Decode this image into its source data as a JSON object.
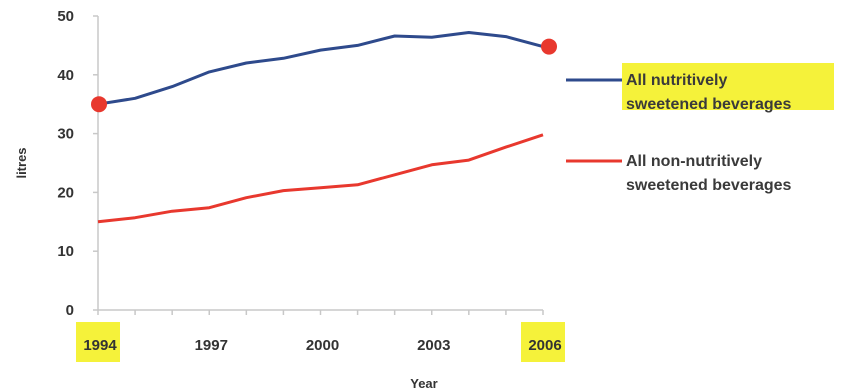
{
  "chart_data": {
    "type": "line",
    "title": "",
    "xlabel": "Year",
    "ylabel": "litres",
    "xlim": [
      1994,
      2006
    ],
    "ylim": [
      0,
      50
    ],
    "xticks": [
      "1994",
      "1997",
      "2000",
      "2003",
      "2006"
    ],
    "yticks": [
      "0",
      "10",
      "20",
      "30",
      "40",
      "50"
    ],
    "highlighted_ticks": [
      "1994",
      "2006"
    ],
    "grid": false,
    "legend_position": "right",
    "x": [
      1994,
      1995,
      1996,
      1997,
      1998,
      1999,
      2000,
      2001,
      2002,
      2003,
      2004,
      2005,
      2006
    ],
    "series": [
      {
        "name": "All nutritively sweetened beverages",
        "legend_lines": [
          "All nutritively",
          "sweetened beverages"
        ],
        "color": "#2e4a8c",
        "highlighted": true,
        "values": [
          35,
          36,
          38,
          40.5,
          42,
          42.8,
          44.2,
          45,
          46.6,
          46.4,
          47.2,
          46.5,
          44.8
        ],
        "endpoint_markers": true
      },
      {
        "name": "All non-nutritively sweetened beverages",
        "legend_lines": [
          "All non-nutritively",
          "sweetened beverages"
        ],
        "color": "#e8382e",
        "highlighted": false,
        "values": [
          15,
          15.7,
          16.8,
          17.4,
          19.1,
          20.3,
          20.8,
          21.3,
          23,
          24.7,
          25.5,
          27.7,
          29.8
        ],
        "endpoint_markers": false
      }
    ],
    "colors": {
      "axis": "#c8c8c8",
      "highlight": "#f5f23a",
      "marker": "#e8382e"
    }
  }
}
